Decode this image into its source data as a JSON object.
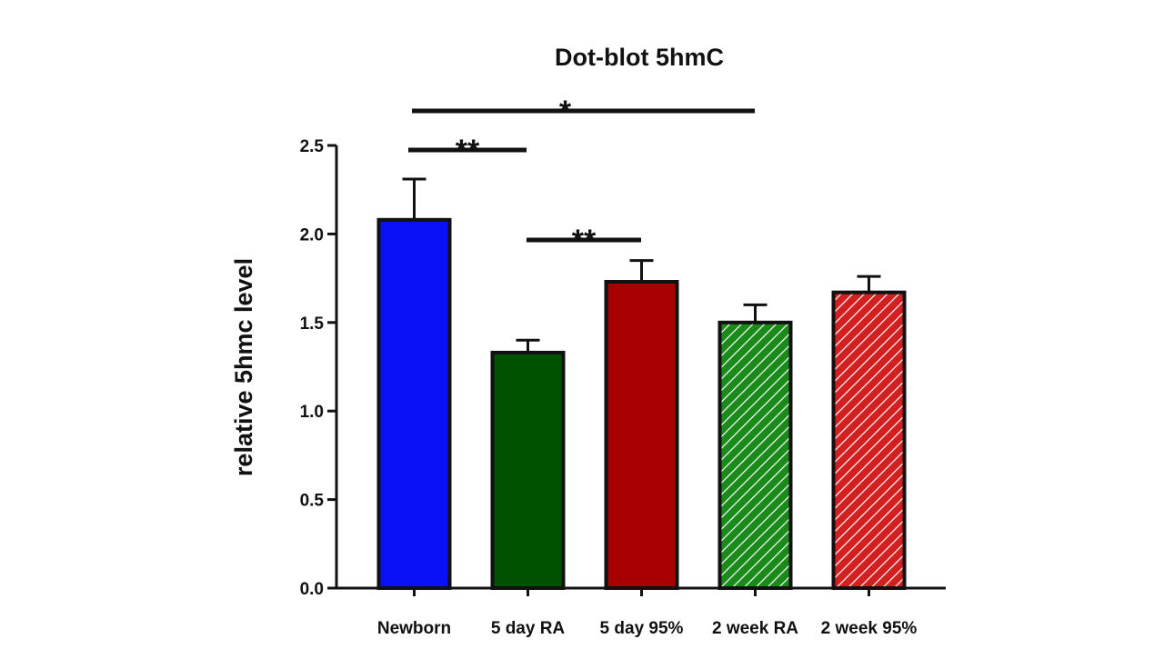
{
  "chart_data": {
    "type": "bar",
    "title": "Dot-blot 5hmC",
    "xlabel": "",
    "ylabel": "relative 5hmc level",
    "ylim": [
      0,
      2.5
    ],
    "yticks": [
      "0.0",
      "0.5",
      "1.0",
      "1.5",
      "2.0",
      "2.5"
    ],
    "tick_values": [
      0,
      0.5,
      1.0,
      1.5,
      2.0,
      2.5
    ],
    "categories": [
      "Newborn",
      "5 day RA",
      "5 day 95%",
      "2 week RA",
      "2 week 95%"
    ],
    "values": [
      2.08,
      1.33,
      1.73,
      1.5,
      1.67
    ],
    "error_upper": [
      2.31,
      1.4,
      1.85,
      1.6,
      1.76
    ],
    "colors": [
      "#0a10f5",
      "#005200",
      "#a80000",
      "#1a8a1a",
      "#d22020"
    ],
    "hatched": [
      false,
      false,
      false,
      true,
      true
    ],
    "grid": false,
    "significance": [
      {
        "from": 0,
        "to": 3,
        "label": "*"
      },
      {
        "from": 0,
        "to": 1,
        "label": "**"
      },
      {
        "from": 1,
        "to": 2,
        "label": "**"
      }
    ]
  }
}
